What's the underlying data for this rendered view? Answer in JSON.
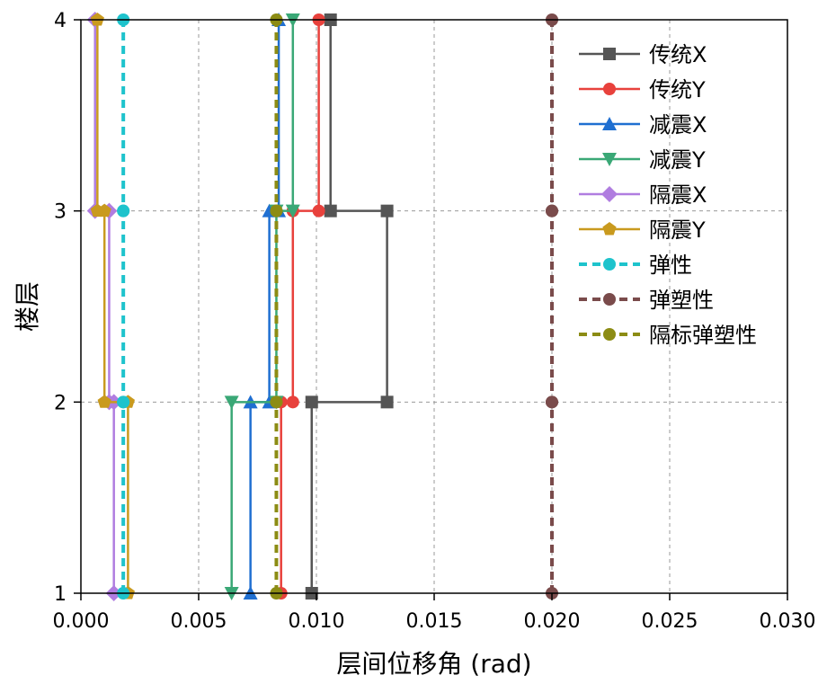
{
  "chart_data": {
    "type": "line",
    "xlabel": "层间位移角 (rad)",
    "ylabel": "楼层",
    "xlim": [
      0,
      0.03
    ],
    "ylim": [
      1,
      4
    ],
    "x_ticks": [
      "0.000",
      "0.005",
      "0.010",
      "0.015",
      "0.020",
      "0.025",
      "0.030"
    ],
    "x_tick_values": [
      0,
      0.005,
      0.01,
      0.015,
      0.02,
      0.025,
      0.03
    ],
    "y_ticks": [
      "1",
      "2",
      "3",
      "4"
    ],
    "y_tick_values": [
      1,
      2,
      3,
      4
    ],
    "grid": true,
    "step_style": "horizontal-step",
    "legend_position": "top-right",
    "series": [
      {
        "name": "传统X",
        "color": "#555555",
        "marker": "square",
        "line_style": "solid",
        "points": [
          [
            0.0098,
            1
          ],
          [
            0.0098,
            2
          ],
          [
            0.013,
            2
          ],
          [
            0.013,
            3
          ],
          [
            0.0106,
            3
          ],
          [
            0.0106,
            4
          ]
        ]
      },
      {
        "name": "传统Y",
        "color": "#e8413c",
        "marker": "circle",
        "line_style": "solid",
        "points": [
          [
            0.0085,
            1
          ],
          [
            0.0085,
            2
          ],
          [
            0.009,
            2
          ],
          [
            0.009,
            3
          ],
          [
            0.0101,
            3
          ],
          [
            0.0101,
            4
          ]
        ]
      },
      {
        "name": "减震X",
        "color": "#1f6fd1",
        "marker": "triangle-up",
        "line_style": "solid",
        "points": [
          [
            0.0072,
            1
          ],
          [
            0.0072,
            2
          ],
          [
            0.008,
            2
          ],
          [
            0.008,
            3
          ],
          [
            0.0084,
            3
          ],
          [
            0.0084,
            4
          ]
        ]
      },
      {
        "name": "减震Y",
        "color": "#3aa876",
        "marker": "triangle-down",
        "line_style": "solid",
        "points": [
          [
            0.0064,
            1
          ],
          [
            0.0064,
            2
          ],
          [
            0.0083,
            2
          ],
          [
            0.0083,
            3
          ],
          [
            0.009,
            3
          ],
          [
            0.009,
            4
          ]
        ]
      },
      {
        "name": "隔震X",
        "color": "#b07de0",
        "marker": "diamond",
        "line_style": "solid",
        "points": [
          [
            0.0014,
            1
          ],
          [
            0.0014,
            2
          ],
          [
            0.0012,
            2
          ],
          [
            0.0012,
            3
          ],
          [
            0.0006,
            3
          ],
          [
            0.0006,
            4
          ]
        ]
      },
      {
        "name": "隔震Y",
        "color": "#c99a1e",
        "marker": "pentagon",
        "line_style": "solid",
        "points": [
          [
            0.002,
            1
          ],
          [
            0.002,
            2
          ],
          [
            0.001,
            2
          ],
          [
            0.001,
            3
          ],
          [
            0.0007,
            3
          ],
          [
            0.0007,
            4
          ]
        ]
      },
      {
        "name": "弹性",
        "color": "#1ec3cc",
        "marker": "circle",
        "line_style": "dashed",
        "points": [
          [
            0.0018,
            1
          ],
          [
            0.0018,
            2
          ],
          [
            0.0018,
            2
          ],
          [
            0.0018,
            3
          ],
          [
            0.0018,
            3
          ],
          [
            0.0018,
            4
          ]
        ]
      },
      {
        "name": "弹塑性",
        "color": "#7a4b4b",
        "marker": "circle",
        "line_style": "dashed",
        "points": [
          [
            0.02,
            1
          ],
          [
            0.02,
            2
          ],
          [
            0.02,
            2
          ],
          [
            0.02,
            3
          ],
          [
            0.02,
            3
          ],
          [
            0.02,
            4
          ]
        ]
      },
      {
        "name": "隔标弹塑性",
        "color": "#8c8c14",
        "marker": "circle",
        "line_style": "dashed",
        "points": [
          [
            0.0083,
            1
          ],
          [
            0.0083,
            2
          ],
          [
            0.0083,
            2
          ],
          [
            0.0083,
            3
          ],
          [
            0.0083,
            3
          ],
          [
            0.0083,
            4
          ]
        ]
      }
    ]
  }
}
